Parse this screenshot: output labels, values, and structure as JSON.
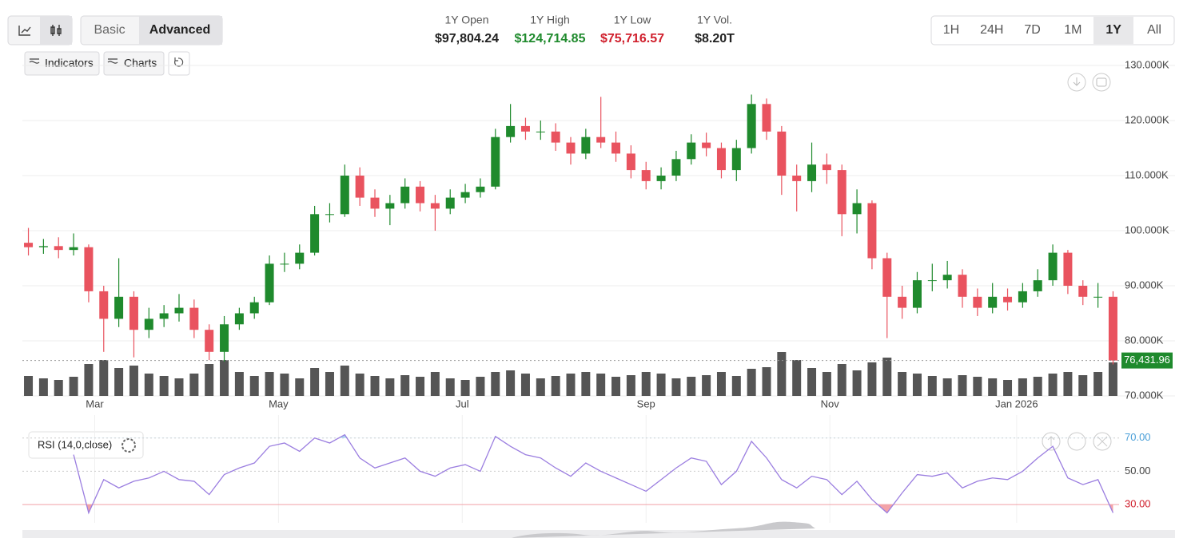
{
  "header": {
    "view_modes": [
      "Basic",
      "Advanced"
    ],
    "stats": [
      {
        "label": "1Y Open",
        "value": "$97,804.24"
      },
      {
        "label": "1Y High",
        "value": "$124,714.85"
      },
      {
        "label": "1Y Low",
        "value": "$75,716.57"
      },
      {
        "label": "1Y Vol.",
        "value": "$8.20T"
      }
    ],
    "timeframes": [
      "1H",
      "24H",
      "7D",
      "1M",
      "1Y",
      "All"
    ],
    "tools": [
      "Indicators",
      "Charts"
    ]
  },
  "chart_data": [
    {
      "type": "candlestick",
      "up_color": "#1f8a2d",
      "down_color": "#e9535f",
      "volume_color": "#555555",
      "xlim": [
        -2,
        362
      ],
      "xticks": [
        {
          "value": 22,
          "label": "Mar"
        },
        {
          "value": 83,
          "label": "May"
        },
        {
          "value": 144,
          "label": "Jul"
        },
        {
          "value": 205,
          "label": "Sep"
        },
        {
          "value": 266,
          "label": "Nov"
        },
        {
          "value": 328,
          "label": "Jan 2026"
        }
      ],
      "ylim": [
        70000,
        130000
      ],
      "yticks": [
        {
          "value": 70000,
          "label": "70.000K"
        },
        {
          "value": 80000,
          "label": "80.000K"
        },
        {
          "value": 90000,
          "label": "90.000K"
        },
        {
          "value": 100000,
          "label": "100.000K"
        },
        {
          "value": 110000,
          "label": "110.000K"
        },
        {
          "value": 120000,
          "label": "120.000K"
        },
        {
          "value": 130000,
          "label": "130.000K"
        }
      ],
      "grid": true,
      "last_price": 76431.96,
      "last_price_label": "76,431.96",
      "x": [
        0,
        5,
        10,
        15,
        20,
        25,
        30,
        35,
        40,
        45,
        50,
        55,
        60,
        65,
        70,
        75,
        80,
        85,
        90,
        95,
        100,
        105,
        110,
        115,
        120,
        125,
        130,
        135,
        140,
        145,
        150,
        155,
        160,
        165,
        170,
        175,
        180,
        185,
        190,
        195,
        200,
        205,
        210,
        215,
        220,
        225,
        230,
        235,
        240,
        245,
        250,
        255,
        260,
        265,
        270,
        275,
        280,
        285,
        290,
        295,
        300,
        305,
        310,
        315,
        320,
        325,
        330,
        335,
        340,
        345,
        350,
        355,
        360
      ],
      "open": [
        97804,
        97000,
        97200,
        96500,
        97000,
        89000,
        84000,
        88000,
        82000,
        84000,
        85000,
        86000,
        82000,
        78000,
        83000,
        85000,
        87000,
        94000,
        94000,
        96000,
        103000,
        103000,
        110000,
        106000,
        104000,
        105000,
        108000,
        105000,
        104000,
        106000,
        107000,
        108000,
        117000,
        119000,
        118000,
        118000,
        116000,
        114000,
        117000,
        116000,
        114000,
        111000,
        109000,
        110000,
        113000,
        116000,
        115000,
        111000,
        115000,
        123000,
        118000,
        110000,
        109000,
        112000,
        111000,
        103000,
        105000,
        95000,
        88000,
        86000,
        91000,
        91000,
        92000,
        88000,
        86000,
        88000,
        87000,
        89000,
        91000,
        96000,
        90000,
        88000,
        88000
      ],
      "high": [
        100500,
        98500,
        98800,
        99500,
        97500,
        90000,
        95000,
        89000,
        86000,
        86500,
        88500,
        87500,
        83000,
        84500,
        86000,
        88000,
        95500,
        96000,
        97500,
        104500,
        105000,
        112000,
        111500,
        107500,
        106500,
        109500,
        109000,
        106500,
        107500,
        108500,
        109500,
        118500,
        123000,
        120500,
        120000,
        119500,
        117000,
        118500,
        124300,
        118000,
        115500,
        112500,
        111500,
        114500,
        117500,
        117800,
        116000,
        116500,
        124714.85,
        124000,
        119000,
        112000,
        116000,
        114000,
        112000,
        107500,
        105500,
        96000,
        90000,
        92500,
        94000,
        94500,
        93000,
        89500,
        90500,
        89500,
        90500,
        93000,
        97500,
        96500,
        91000,
        90500,
        89000
      ],
      "low": [
        95500,
        95800,
        95000,
        95500,
        87000,
        78000,
        82500,
        77000,
        80500,
        82500,
        83500,
        80500,
        76500,
        76200,
        82000,
        84000,
        86500,
        92500,
        93000,
        95500,
        101500,
        102500,
        104500,
        102500,
        101000,
        104000,
        103500,
        100000,
        103000,
        105000,
        106000,
        107500,
        116000,
        116500,
        116500,
        114500,
        112000,
        113000,
        115000,
        112500,
        109500,
        107500,
        107500,
        109000,
        112000,
        113500,
        109500,
        109000,
        114000,
        116500,
        106500,
        103500,
        107000,
        108500,
        99000,
        99500,
        93000,
        80500,
        84000,
        85000,
        89000,
        89500,
        86000,
        84500,
        85000,
        85500,
        86000,
        88000,
        90000,
        88500,
        86500,
        86000,
        75716.57
      ],
      "close": [
        97000,
        97200,
        96500,
        97000,
        89000,
        84000,
        88000,
        82000,
        84000,
        85000,
        86000,
        82000,
        78000,
        83000,
        85000,
        87000,
        94000,
        94000,
        96000,
        103000,
        103000,
        110000,
        106000,
        104000,
        105000,
        108000,
        105000,
        104000,
        106000,
        107000,
        108000,
        117000,
        119000,
        118000,
        118000,
        116000,
        114000,
        117000,
        116000,
        114000,
        111000,
        109000,
        110000,
        113000,
        116000,
        115000,
        111000,
        115000,
        123000,
        118000,
        110000,
        109000,
        112000,
        111000,
        103000,
        105000,
        95000,
        88000,
        86000,
        91000,
        91000,
        92000,
        88000,
        86000,
        88000,
        87000,
        89000,
        91000,
        96000,
        90000,
        88000,
        88000,
        76431.96
      ],
      "volume": [
        25,
        22,
        20,
        24,
        40,
        45,
        35,
        38,
        28,
        25,
        22,
        28,
        40,
        45,
        30,
        25,
        30,
        28,
        22,
        35,
        30,
        38,
        28,
        25,
        22,
        26,
        24,
        30,
        22,
        20,
        24,
        30,
        32,
        28,
        22,
        25,
        28,
        30,
        28,
        24,
        26,
        30,
        28,
        22,
        24,
        26,
        30,
        25,
        34,
        36,
        55,
        45,
        35,
        30,
        40,
        32,
        42,
        48,
        30,
        28,
        25,
        22,
        26,
        24,
        22,
        20,
        22,
        24,
        28,
        30,
        26,
        30,
        42
      ]
    },
    {
      "type": "line",
      "title": "RSI (14,0,close)",
      "color": "#9b7ee0",
      "ylim": [
        19,
        79
      ],
      "yticks": [
        {
          "value": 30,
          "label": "30.00"
        },
        {
          "value": 50,
          "label": "50.00"
        },
        {
          "value": 70,
          "label": "70.00"
        }
      ],
      "values": [
        null,
        null,
        null,
        60,
        25,
        45,
        40,
        44,
        46,
        50,
        45,
        44,
        36,
        48,
        52,
        55,
        65,
        67,
        62,
        70,
        67,
        72,
        58,
        52,
        55,
        58,
        50,
        47,
        52,
        54,
        50,
        71,
        65,
        60,
        58,
        52,
        47,
        55,
        50,
        46,
        42,
        38,
        45,
        52,
        58,
        56,
        42,
        50,
        68,
        58,
        45,
        40,
        47,
        45,
        36,
        44,
        33,
        25,
        37,
        48,
        47,
        49,
        40,
        44,
        46,
        45,
        50,
        58,
        65,
        46,
        42,
        45,
        25
      ]
    }
  ]
}
